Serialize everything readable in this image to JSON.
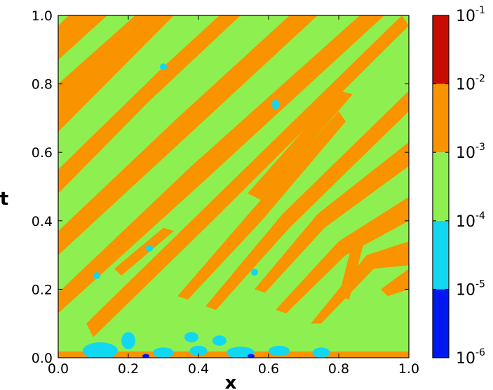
{
  "chart_data": {
    "type": "heatmap",
    "xlabel": "x",
    "ylabel": "t",
    "xlim": [
      0.0,
      1.0
    ],
    "ylim": [
      0.0,
      1.0
    ],
    "x_ticks": [
      "0.0",
      "0.2",
      "0.4",
      "0.6",
      "0.8",
      "1.0"
    ],
    "y_ticks": [
      "0.0",
      "0.2",
      "0.4",
      "0.6",
      "0.8",
      "1.0"
    ],
    "colorbar": {
      "scale": "log",
      "levels": [
        {
          "base": "10",
          "exp": "-6",
          "value": 1e-06
        },
        {
          "base": "10",
          "exp": "-5",
          "value": 1e-05
        },
        {
          "base": "10",
          "exp": "-4",
          "value": 0.0001
        },
        {
          "base": "10",
          "exp": "-3",
          "value": 0.001
        },
        {
          "base": "10",
          "exp": "-2",
          "value": 0.01
        },
        {
          "base": "10",
          "exp": "-1",
          "value": 0.1
        }
      ],
      "band_colors": [
        "#0018f0",
        "#11d8f0",
        "#8ef050",
        "#f99300",
        "#c80b00"
      ]
    },
    "background_level_color": "#8ef050",
    "streak_level_color": "#f99300",
    "low_level_color": "#11d8f0",
    "lowest_level_color": "#0018f0"
  }
}
